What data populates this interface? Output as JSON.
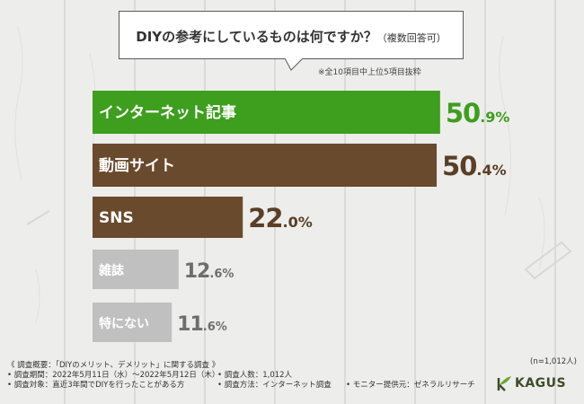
{
  "question": {
    "main": "DIYの参考にしているものは何ですか？",
    "sub": "（複数回答可）"
  },
  "note": "※全10項目中上位5項目抜粋",
  "chart_data": {
    "type": "bar",
    "orientation": "horizontal",
    "categories": [
      "インターネット記事",
      "動画サイト",
      "SNS",
      "雑誌",
      "特にない"
    ],
    "values": [
      50.9,
      50.4,
      22.0,
      12.6,
      11.6
    ],
    "unit": "%",
    "value_labels": [
      {
        "int": "50",
        "dec": ".9%"
      },
      {
        "int": "50",
        "dec": ".4%"
      },
      {
        "int": "22",
        "dec": ".0%"
      },
      {
        "int": "12",
        "dec": ".6%"
      },
      {
        "int": "11",
        "dec": ".6%"
      }
    ],
    "bar_colors": [
      "#3e9e1e",
      "#6a4a2c",
      "#6a4a2c",
      "#c0c0c0",
      "#c0c0c0"
    ],
    "value_colors": [
      "#3e9e1e",
      "#5a3e26",
      "#5a3e26",
      "#6e6e6e",
      "#6e6e6e"
    ]
  },
  "sample_note": "(n=1,012人)",
  "footer": {
    "title": "《 調査概要：「DIYのメリット、デメリット」に関する調査 》",
    "period": "• 調査期間：2022年5月11日（水）～2022年5月12日（木）",
    "target": "• 調査対象：直近3年間でDIYを行ったことがある方",
    "people": "• 調査人数：1,012人",
    "method": "• 調査方法：インターネット調査",
    "provider": "• モニター提供元：ゼネラルリサーチ"
  },
  "logo": {
    "text": "KAGUS"
  },
  "colors": {
    "green": "#3e9e1e",
    "brown": "#6a4a2c",
    "gray": "#c0c0c0"
  }
}
